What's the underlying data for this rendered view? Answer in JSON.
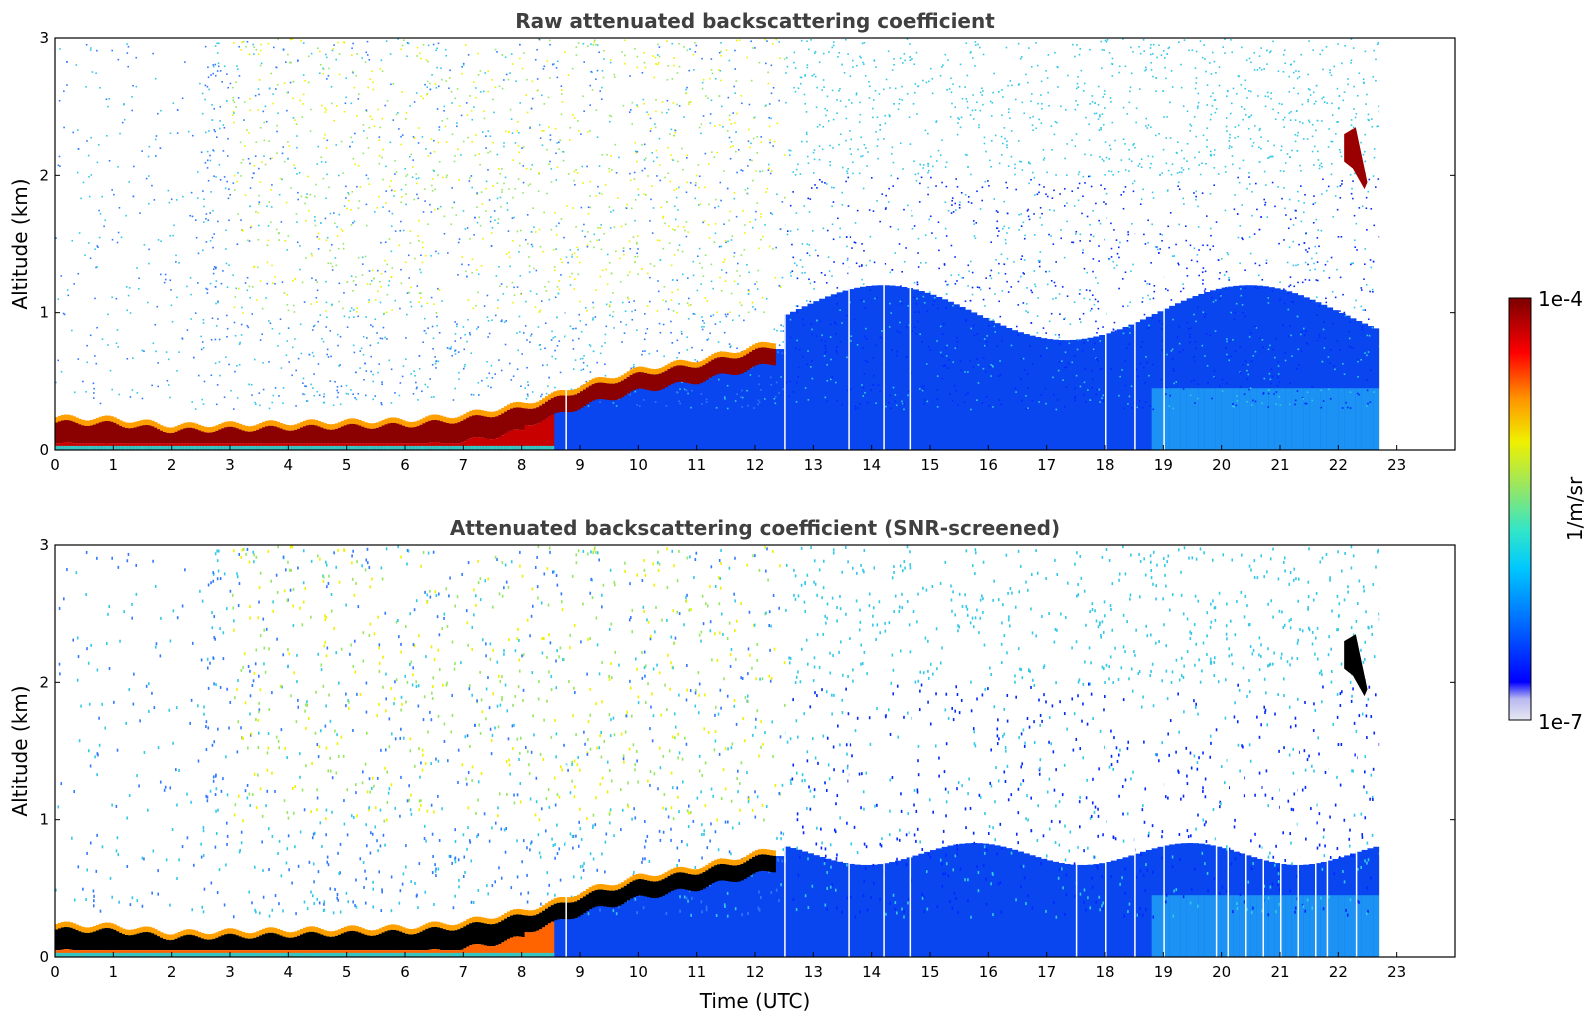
{
  "chart_data": [
    {
      "type": "heatmap",
      "title": "Raw attenuated backscattering coefficient",
      "ylabel": "Altitude (km)",
      "xlabel": "",
      "xlim": [
        0,
        24
      ],
      "ylim": [
        0,
        3
      ],
      "x_ticks": [
        "0",
        "1",
        "2",
        "3",
        "4",
        "5",
        "6",
        "7",
        "8",
        "9",
        "10",
        "11",
        "12",
        "13",
        "14",
        "15",
        "16",
        "17",
        "18",
        "19",
        "20",
        "21",
        "22",
        "23"
      ],
      "y_ticks": [
        "0",
        "1",
        "2",
        "3"
      ],
      "data_end_time": 22.7,
      "layer_top_km": [
        {
          "t": 0,
          "z": 0.2
        },
        {
          "t": 1,
          "z": 0.19
        },
        {
          "t": 2,
          "z": 0.14
        },
        {
          "t": 3,
          "z": 0.15
        },
        {
          "t": 4,
          "z": 0.16
        },
        {
          "t": 5,
          "z": 0.17
        },
        {
          "t": 6,
          "z": 0.18
        },
        {
          "t": 7,
          "z": 0.22
        },
        {
          "t": 8,
          "z": 0.3
        },
        {
          "t": 8.5,
          "z": 0.36
        },
        {
          "t": 9,
          "z": 0.44
        },
        {
          "t": 10,
          "z": 0.55
        },
        {
          "t": 11,
          "z": 0.62
        },
        {
          "t": 12,
          "z": 0.72
        },
        {
          "t": 12.3,
          "z": 0.75
        }
      ],
      "cloud": {
        "t_start": 22.1,
        "t_end": 22.5,
        "z_top": 2.3,
        "z_bottom": 1.95
      },
      "gaps_hours": [
        8.75,
        12.5,
        13.6,
        14.2,
        14.65,
        18.0,
        18.5,
        19.0
      ]
    },
    {
      "type": "heatmap",
      "title": "Attenuated backscattering coefficient (SNR-screened)",
      "ylabel": "Altitude (km)",
      "xlabel": "Time (UTC)",
      "xlim": [
        0,
        24
      ],
      "ylim": [
        0,
        3
      ],
      "x_ticks": [
        "0",
        "1",
        "2",
        "3",
        "4",
        "5",
        "6",
        "7",
        "8",
        "9",
        "10",
        "11",
        "12",
        "13",
        "14",
        "15",
        "16",
        "17",
        "18",
        "19",
        "20",
        "21",
        "22",
        "23"
      ],
      "y_ticks": [
        "0",
        "1",
        "2",
        "3"
      ],
      "data_end_time": 22.7,
      "cloud": {
        "t_start": 22.1,
        "t_end": 22.5,
        "z_top": 2.3,
        "z_bottom": 1.95
      },
      "gaps_hours": [
        8.75,
        12.5,
        13.6,
        14.2,
        14.65,
        17.5,
        18.0,
        18.5,
        19.0,
        19.9,
        20.1,
        20.4,
        20.7,
        21.0,
        21.3,
        21.6,
        21.8,
        22.3
      ]
    }
  ],
  "colorbar": {
    "label": "1/m/sr",
    "max_label": "1e-4",
    "min_label": "1e-7",
    "colormap": [
      "#e8e8f4",
      "#b8b8f0",
      "#0000ff",
      "#0064ff",
      "#00c8ff",
      "#32e6c8",
      "#96e664",
      "#f0f000",
      "#ff9600",
      "#ff0000",
      "#7a0000"
    ]
  }
}
